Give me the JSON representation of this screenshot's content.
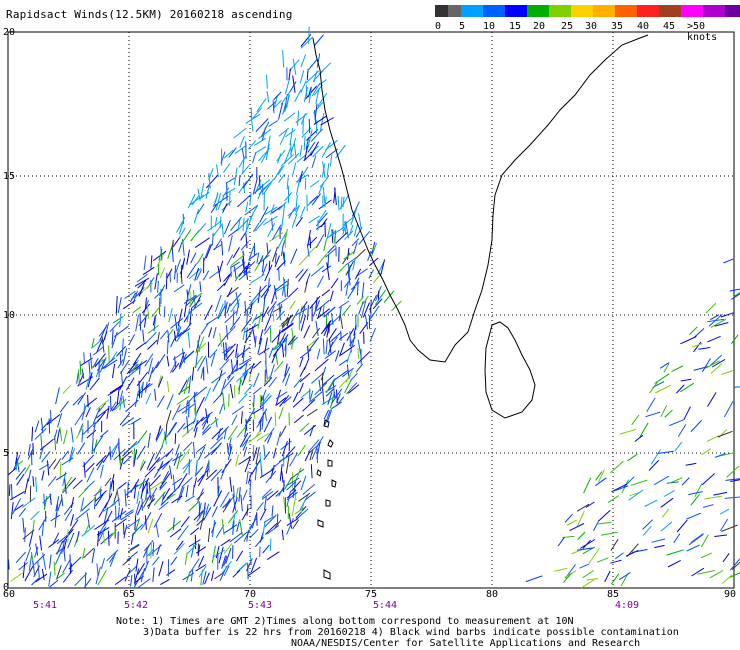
{
  "title": "Rapidsact Winds(12.5KM) 20160218 ascending",
  "scale": {
    "colors": [
      "#333333",
      "#666666",
      "#00a0ff",
      "#0060ff",
      "#0000ff",
      "#00b000",
      "#7fd000",
      "#ffd000",
      "#ffb000",
      "#ff6000",
      "#ff2020",
      "#a04020",
      "#ff00ff",
      "#b000d0",
      "#6a00a0"
    ],
    "labels": [
      "0",
      "5",
      "10",
      "15",
      "20",
      "25",
      "30",
      "35",
      "40",
      "45",
      ">50 knots"
    ]
  },
  "axes": {
    "x_ticks": [
      "60",
      "65",
      "70",
      "75",
      "80",
      "85",
      "90"
    ],
    "y_ticks": [
      "20",
      "15",
      "10",
      "5",
      "0"
    ]
  },
  "pass_times": [
    "5:41",
    "5:42",
    "5:43",
    "5:44",
    "4:09"
  ],
  "notes": {
    "line1": "Note: 1) Times are GMT 2)Times along bottom correspond to measurement at 10N",
    "line2": "3)Data buffer is 22 hrs from 20160218 4) Black wind barbs indicate possible contamination",
    "line3": "NOAA/NESDIS/Center for Satellite Applications and Research"
  }
}
